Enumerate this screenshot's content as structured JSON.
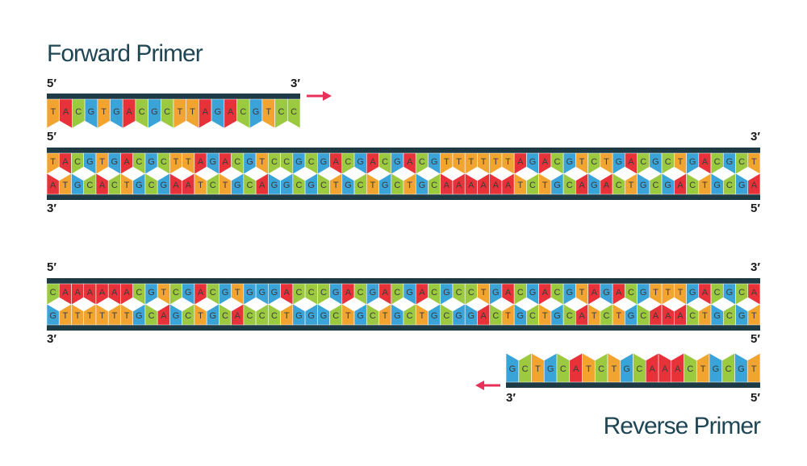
{
  "forward_primer": {
    "title": "Forward Primer",
    "end_left": "5′",
    "end_right": "3′",
    "sequence": "TACGTGACGCTTAGACGTCC"
  },
  "duplexes": [
    {
      "top_left": "5′",
      "top_right": "3′",
      "top_strand": "TACGTGACGCTTAGACGTCCGCGACGACGACGTTTTTTAGACGTCTGACGCTGACGCT",
      "bottom_strand": "ATGCACTGCGAATCTGCAGGCGCTGCTGCTGCAAAAAATCTGCAGACTGCGACTGCGA",
      "bottom_left": "3′",
      "bottom_right": "5′"
    },
    {
      "top_left": "5′",
      "top_right": "3′",
      "top_strand": "CAAAAAACGTCGACGTGGGACCCGACGACGACGCCTGACGACGTAGACGTTTGACGCA",
      "bottom_strand": "GTTTTTTGCAGCTGCACCCTGGGCTGCTGCTGCGGACTGCTGCATCTGCAAACTGCGT",
      "bottom_left": "3′",
      "bottom_right": "5′"
    }
  ],
  "reverse_primer": {
    "title": "Reverse Primer",
    "end_left": "3′",
    "end_right": "5′",
    "sequence": "GCTGCATCTGCAAACTGCGT"
  }
}
